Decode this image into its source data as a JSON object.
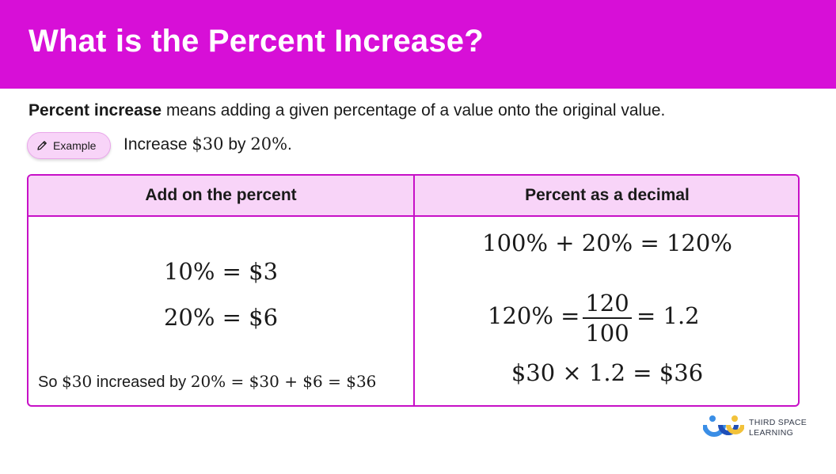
{
  "title": "What is the Percent Increase?",
  "definition": {
    "term": "Percent increase",
    "text": " means adding a given percentage of a value onto the original value."
  },
  "example": {
    "pill_label": "Example",
    "pill_icon": "pencil-icon",
    "text_prefix": "Increase ",
    "amount": "$30",
    "middle": " by ",
    "percent": "20%",
    "suffix": "."
  },
  "table": {
    "headers": [
      "Add on the percent",
      "Percent as a decimal"
    ],
    "left": {
      "line1": "10% = $3",
      "line2": "20% = $6",
      "summary_prefix": "So ",
      "summary_amount": "$30",
      "summary_middle": " increased by ",
      "summary_math": "20% = $30 + $6 = $36"
    },
    "right": {
      "line1": "100% + 20% = 120%",
      "frac_lhs": "120% =",
      "frac_num": "120",
      "frac_den": "100",
      "frac_rhs": "= 1.2",
      "line3": "$30 × 1.2 = $36"
    }
  },
  "logo": {
    "line1": "THIRD SPACE",
    "line2": "LEARNING"
  },
  "colors": {
    "accent": "#d70fd7",
    "header_fill": "#f8d4f8",
    "border": "#c710c7"
  }
}
